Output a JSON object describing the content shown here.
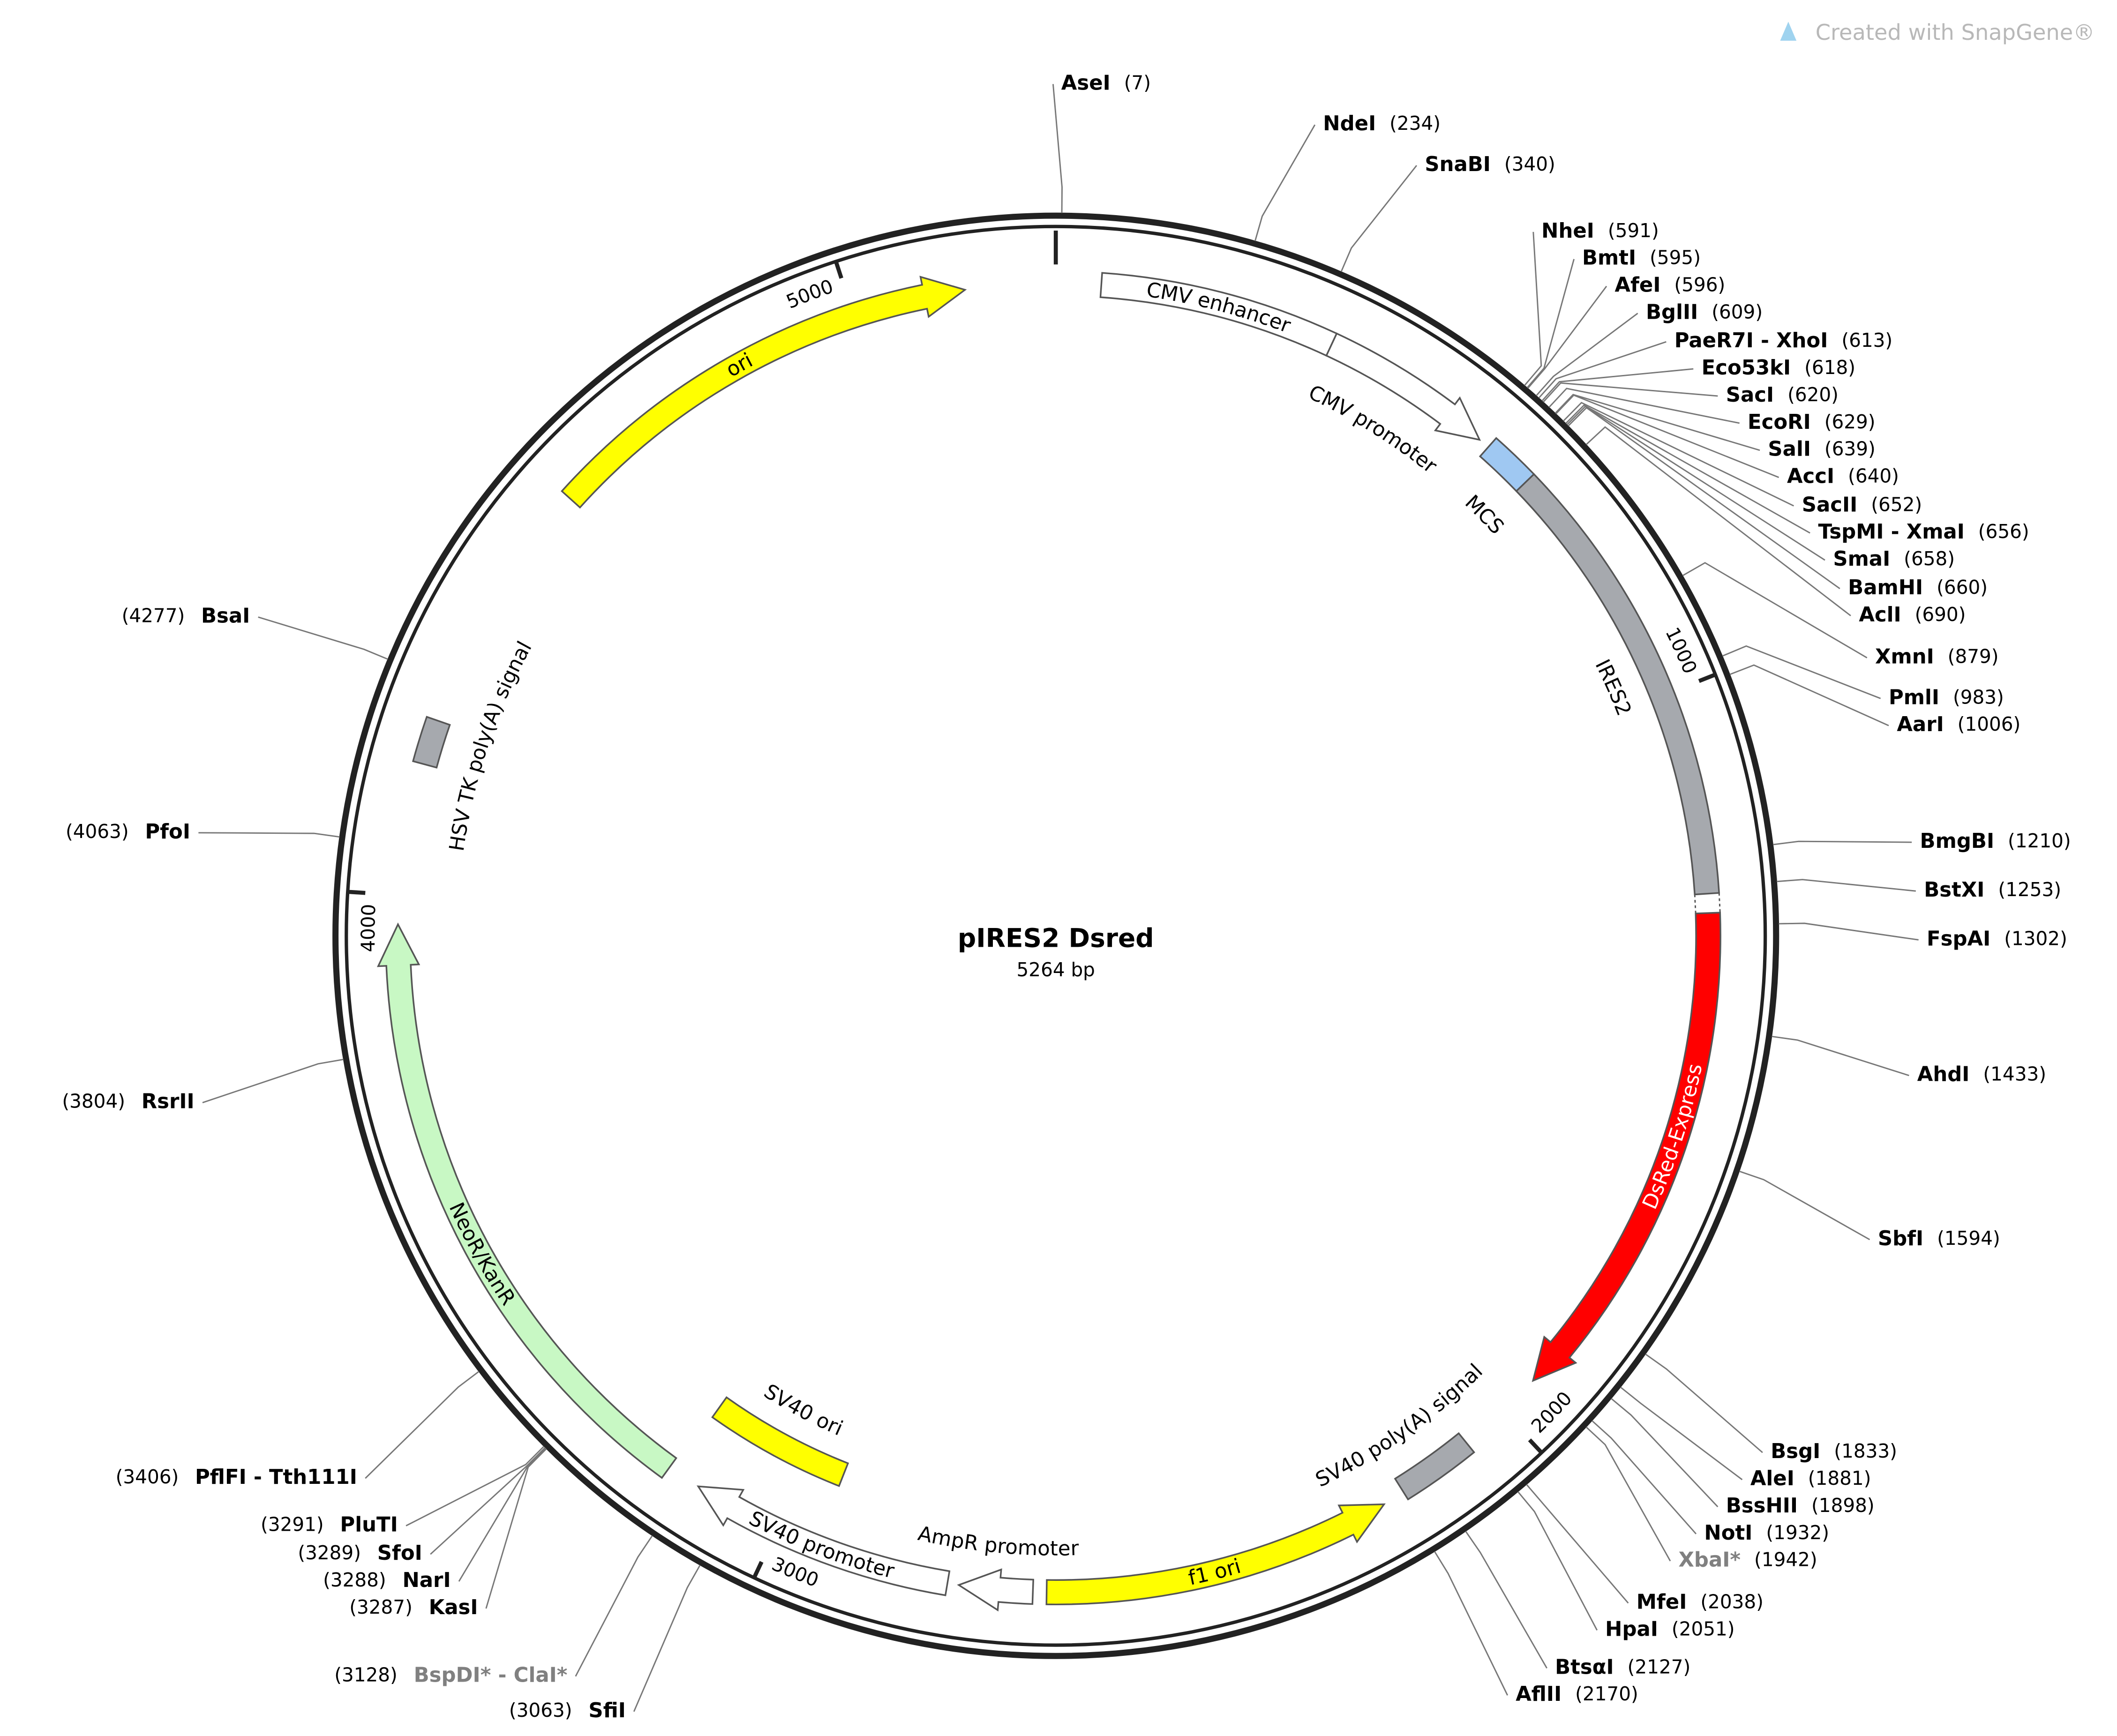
{
  "title": "pIRES2 Dsred",
  "length": {
    "value": 5264,
    "label": "5264 bp"
  },
  "watermark": "Created with SnapGene®",
  "ticks": [
    1000,
    2000,
    3000,
    4000,
    5000
  ],
  "sites": [
    {
      "name": "AseI",
      "position": 7,
      "position_label": "(7)"
    },
    {
      "name": "NdeI",
      "position": 234,
      "position_label": "(234)"
    },
    {
      "name": "SnaBI",
      "position": 340,
      "position_label": "(340)"
    },
    {
      "name": "NheI",
      "position": 591,
      "position_label": "(591)"
    },
    {
      "name": "BmtI",
      "position": 595,
      "position_label": "(595)"
    },
    {
      "name": "AfeI",
      "position": 596,
      "position_label": "(596)"
    },
    {
      "name": "BglII",
      "position": 609,
      "position_label": "(609)"
    },
    {
      "name": "PaeR7I - XhoI",
      "position": 613,
      "position_label": "(613)"
    },
    {
      "name": "Eco53kI",
      "position": 618,
      "position_label": "(618)"
    },
    {
      "name": "SacI",
      "position": 620,
      "position_label": "(620)"
    },
    {
      "name": "EcoRI",
      "position": 629,
      "position_label": "(629)"
    },
    {
      "name": "SalI",
      "position": 639,
      "position_label": "(639)"
    },
    {
      "name": "AccI",
      "position": 640,
      "position_label": "(640)"
    },
    {
      "name": "SacII",
      "position": 652,
      "position_label": "(652)"
    },
    {
      "name": "TspMI - XmaI",
      "position": 656,
      "position_label": "(656)"
    },
    {
      "name": "SmaI",
      "position": 658,
      "position_label": "(658)"
    },
    {
      "name": "BamHI",
      "position": 660,
      "position_label": "(660)"
    },
    {
      "name": "AclI",
      "position": 690,
      "position_label": "(690)"
    },
    {
      "name": "XmnI",
      "position": 879,
      "position_label": "(879)"
    },
    {
      "name": "PmlI",
      "position": 983,
      "position_label": "(983)"
    },
    {
      "name": "AarI",
      "position": 1006,
      "position_label": "(1006)"
    },
    {
      "name": "BmgBI",
      "position": 1210,
      "position_label": "(1210)"
    },
    {
      "name": "BstXI",
      "position": 1253,
      "position_label": "(1253)"
    },
    {
      "name": "FspAI",
      "position": 1302,
      "position_label": "(1302)"
    },
    {
      "name": "AhdI",
      "position": 1433,
      "position_label": "(1433)"
    },
    {
      "name": "SbfI",
      "position": 1594,
      "position_label": "(1594)"
    },
    {
      "name": "BsgI",
      "position": 1833,
      "position_label": "(1833)"
    },
    {
      "name": "AleI",
      "position": 1881,
      "position_label": "(1881)"
    },
    {
      "name": "BssHII",
      "position": 1898,
      "position_label": "(1898)"
    },
    {
      "name": "NotI",
      "position": 1932,
      "position_label": "(1932)"
    },
    {
      "name": "XbaI*",
      "position": 1942,
      "position_label": "(1942)",
      "color": "#808080"
    },
    {
      "name": "MfeI",
      "position": 2038,
      "position_label": "(2038)"
    },
    {
      "name": "HpaI",
      "position": 2051,
      "position_label": "(2051)"
    },
    {
      "name": "BtsαI",
      "position": 2127,
      "position_label": "(2127)"
    },
    {
      "name": "AflII",
      "position": 2170,
      "position_label": "(2170)"
    },
    {
      "name": "SfiI",
      "position": 3063,
      "position_label": "(3063)"
    },
    {
      "name": "BspDI* - ClaI*",
      "position": 3128,
      "position_label": "(3128)",
      "color": "#808080"
    },
    {
      "name": "KasI",
      "position": 3287,
      "position_label": "(3287)"
    },
    {
      "name": "NarI",
      "position": 3288,
      "position_label": "(3288)"
    },
    {
      "name": "SfoI",
      "position": 3289,
      "position_label": "(3289)"
    },
    {
      "name": "PluTI",
      "position": 3291,
      "position_label": "(3291)"
    },
    {
      "name": "PflFI - Tth111I",
      "position": 3406,
      "position_label": "(3406)"
    },
    {
      "name": "RsrII",
      "position": 3804,
      "position_label": "(3804)"
    },
    {
      "name": "PfoI",
      "position": 4063,
      "position_label": "(4063)"
    },
    {
      "name": "BsaI",
      "position": 4277,
      "position_label": "(4277)"
    }
  ],
  "features": [
    {
      "label": "CMV enhancer",
      "color": "#ffffff"
    },
    {
      "label": "CMV promoter",
      "color": "#ffffff"
    },
    {
      "label": "MCS",
      "color": "#9fc8f2"
    },
    {
      "label": "IRES2",
      "color": "#a6a9ae"
    },
    {
      "label": "DsRed-Express",
      "color": "#ff0000"
    },
    {
      "label": "SV40 poly(A) signal",
      "color": "#a6a9ae"
    },
    {
      "label": "f1 ori",
      "color": "#ffff00"
    },
    {
      "label": "AmpR promoter",
      "color": "#ffffff"
    },
    {
      "label": "SV40 promoter",
      "color": "#ffffff"
    },
    {
      "label": "SV40 ori",
      "color": "#ffff00"
    },
    {
      "label": "NeoR/KanR",
      "color": "#c8f8c4"
    },
    {
      "label": "HSV TK poly(A) signal",
      "color": "#a6a9ae"
    },
    {
      "label": "ori",
      "color": "#ffff00"
    }
  ]
}
